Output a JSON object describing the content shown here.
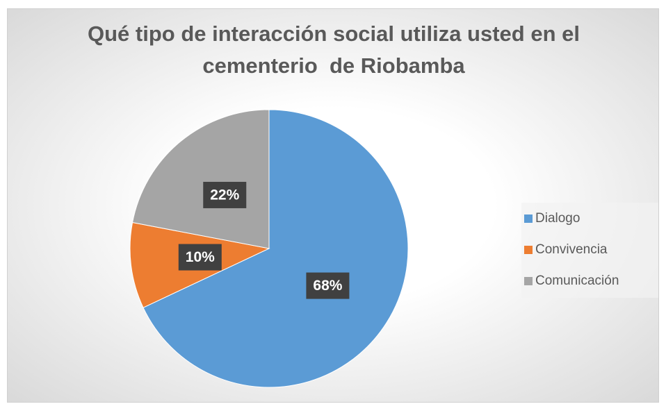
{
  "chart_data": {
    "type": "pie",
    "title": "Qué tipo de interacción social utiliza usted en el cementerio  de Riobamba",
    "categories": [
      "Dialogo",
      "Convivencia",
      "Comunicación"
    ],
    "values": [
      68,
      10,
      22
    ],
    "value_labels": [
      "68%",
      "10%",
      "22%"
    ],
    "colors": [
      "#5b9bd5",
      "#ed7d31",
      "#a5a5a5"
    ],
    "legend": "right"
  }
}
